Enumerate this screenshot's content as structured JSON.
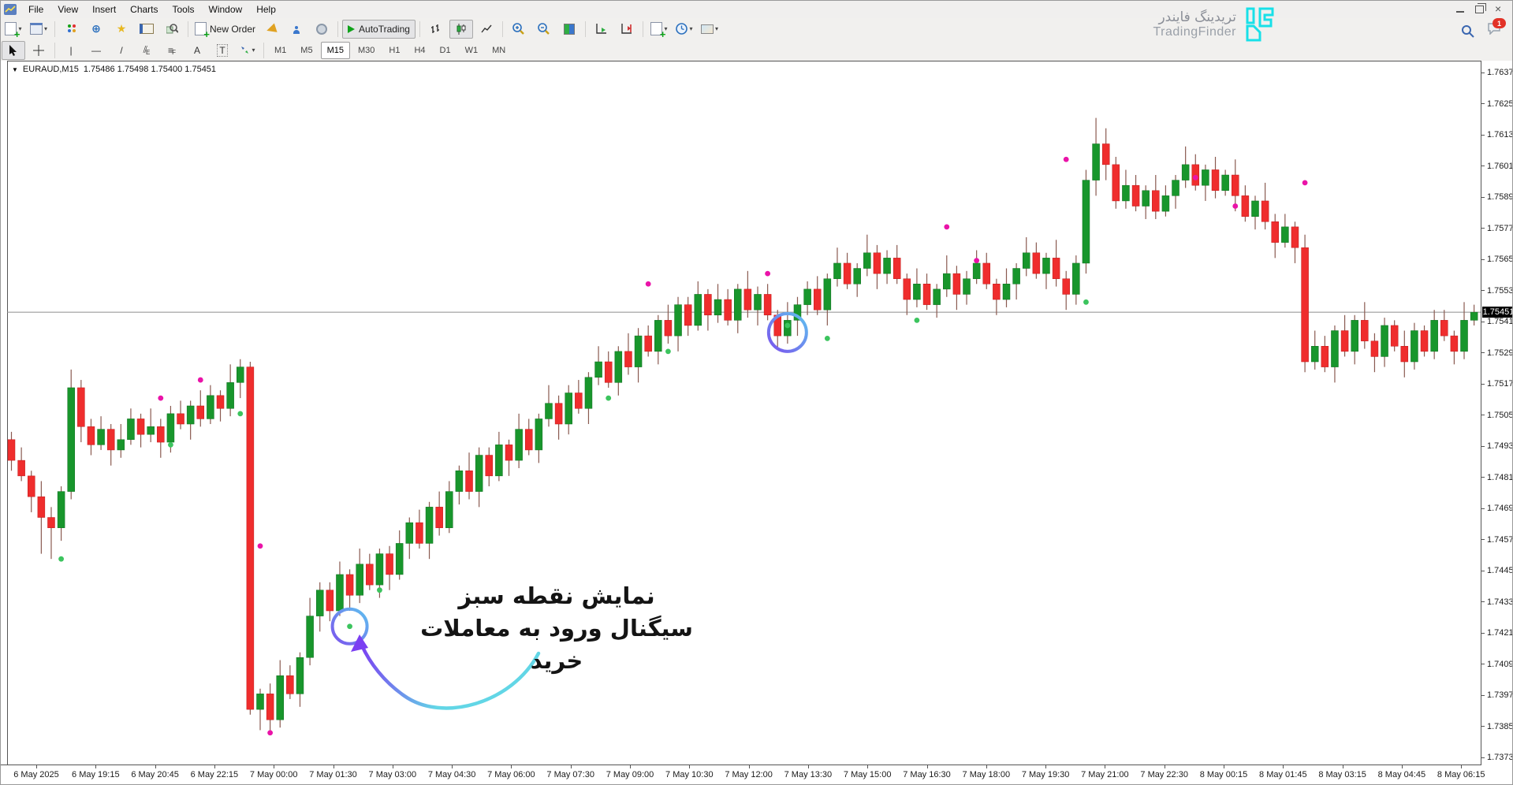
{
  "window": {
    "menu": [
      "File",
      "View",
      "Insert",
      "Charts",
      "Tools",
      "Window",
      "Help"
    ]
  },
  "brand": {
    "name_fa": "تریدینگ فایندر",
    "name_en": "TradingFinder"
  },
  "toolbar": {
    "new_order": "New Order",
    "autotrading": "AutoTrading",
    "chat_badge": "1",
    "tool_a": "A",
    "tool_t": "T",
    "tool_e": "E",
    "tool_f": "F"
  },
  "timeframes": {
    "items": [
      "M1",
      "M5",
      "M15",
      "M30",
      "H1",
      "H4",
      "D1",
      "W1",
      "MN"
    ],
    "active": "M15"
  },
  "chart_header": {
    "symbol": "EURAUD,M15",
    "ohlc": "1.75486 1.75498 1.75400 1.75451"
  },
  "annotation": {
    "line1": "نمایش نقطه سبز",
    "line2": "سیگنال ورود به معاملات خرید"
  },
  "chart_data": {
    "type": "candlestick",
    "symbol": "EURAUD",
    "timeframe": "M15",
    "current_price": 1.75451,
    "grid": false,
    "y_axis": {
      "tick_step": 0.0012,
      "ticks": [
        1.76375,
        1.76255,
        1.76135,
        1.76015,
        1.75895,
        1.75775,
        1.75655,
        1.75535,
        1.75415,
        1.75295,
        1.75175,
        1.75055,
        1.74935,
        1.74815,
        1.74695,
        1.74575,
        1.74455,
        1.74335,
        1.74215,
        1.74095,
        1.73975,
        1.73855,
        1.73735
      ]
    },
    "x_axis": {
      "labels": [
        "6 May 2025",
        "6 May 19:15",
        "6 May 20:45",
        "6 May 22:15",
        "7 May 00:00",
        "7 May 01:30",
        "7 May 03:00",
        "7 May 04:30",
        "7 May 06:00",
        "7 May 07:30",
        "7 May 09:00",
        "7 May 10:30",
        "7 May 12:00",
        "7 May 13:30",
        "7 May 15:00",
        "7 May 16:30",
        "7 May 18:00",
        "7 May 19:30",
        "7 May 21:00",
        "7 May 22:30",
        "8 May 00:15",
        "8 May 01:45",
        "8 May 03:15",
        "8 May 04:45",
        "8 May 06:15"
      ]
    },
    "candles": [
      [
        1.7496,
        1.7499,
        1.7484,
        1.7488
      ],
      [
        1.7488,
        1.7493,
        1.748,
        1.7482
      ],
      [
        1.7482,
        1.7484,
        1.7468,
        1.7474
      ],
      [
        1.7474,
        1.748,
        1.7452,
        1.7466
      ],
      [
        1.7466,
        1.747,
        1.745,
        1.7462
      ],
      [
        1.7462,
        1.7478,
        1.7457,
        1.7476
      ],
      [
        1.7476,
        1.7523,
        1.7473,
        1.7516
      ],
      [
        1.7516,
        1.7519,
        1.7495,
        1.7501
      ],
      [
        1.7501,
        1.7504,
        1.749,
        1.7494
      ],
      [
        1.7494,
        1.7505,
        1.7492,
        1.75
      ],
      [
        1.75,
        1.7502,
        1.7486,
        1.7492
      ],
      [
        1.7492,
        1.7502,
        1.7489,
        1.7496
      ],
      [
        1.7496,
        1.7508,
        1.7494,
        1.7504
      ],
      [
        1.7504,
        1.7506,
        1.7493,
        1.7498
      ],
      [
        1.7498,
        1.7508,
        1.7495,
        1.7501
      ],
      [
        1.7501,
        1.7504,
        1.7489,
        1.7495
      ],
      [
        1.7495,
        1.7509,
        1.7491,
        1.7506
      ],
      [
        1.7506,
        1.7511,
        1.75,
        1.7502
      ],
      [
        1.7502,
        1.7511,
        1.7496,
        1.7509
      ],
      [
        1.7509,
        1.7515,
        1.7501,
        1.7504
      ],
      [
        1.7504,
        1.7517,
        1.7502,
        1.7513
      ],
      [
        1.7513,
        1.7515,
        1.7503,
        1.7508
      ],
      [
        1.7508,
        1.7525,
        1.7505,
        1.7518
      ],
      [
        1.7518,
        1.7527,
        1.7512,
        1.7524
      ],
      [
        1.7524,
        1.7526,
        1.739,
        1.7392
      ],
      [
        1.7392,
        1.74,
        1.7384,
        1.7398
      ],
      [
        1.7398,
        1.7402,
        1.7384,
        1.7388
      ],
      [
        1.7388,
        1.7411,
        1.7385,
        1.7405
      ],
      [
        1.7405,
        1.7409,
        1.7396,
        1.7398
      ],
      [
        1.7398,
        1.7414,
        1.7393,
        1.7412
      ],
      [
        1.7412,
        1.7435,
        1.7409,
        1.7428
      ],
      [
        1.7428,
        1.7441,
        1.7422,
        1.7438
      ],
      [
        1.7438,
        1.7441,
        1.7426,
        1.743
      ],
      [
        1.743,
        1.7449,
        1.7428,
        1.7444
      ],
      [
        1.7444,
        1.7446,
        1.743,
        1.7436
      ],
      [
        1.7436,
        1.7454,
        1.7433,
        1.7448
      ],
      [
        1.7448,
        1.7452,
        1.7438,
        1.744
      ],
      [
        1.744,
        1.7454,
        1.7435,
        1.7452
      ],
      [
        1.7452,
        1.7455,
        1.7438,
        1.7444
      ],
      [
        1.7444,
        1.7461,
        1.7442,
        1.7456
      ],
      [
        1.7456,
        1.7466,
        1.745,
        1.7464
      ],
      [
        1.7464,
        1.7469,
        1.7454,
        1.7456
      ],
      [
        1.7456,
        1.7472,
        1.745,
        1.747
      ],
      [
        1.747,
        1.7476,
        1.7459,
        1.7462
      ],
      [
        1.7462,
        1.748,
        1.746,
        1.7476
      ],
      [
        1.7476,
        1.7486,
        1.7471,
        1.7484
      ],
      [
        1.7484,
        1.7491,
        1.7473,
        1.7476
      ],
      [
        1.7476,
        1.7493,
        1.747,
        1.749
      ],
      [
        1.749,
        1.7493,
        1.7478,
        1.7482
      ],
      [
        1.7482,
        1.7499,
        1.748,
        1.7494
      ],
      [
        1.7494,
        1.7496,
        1.7482,
        1.7488
      ],
      [
        1.7488,
        1.7506,
        1.7485,
        1.75
      ],
      [
        1.75,
        1.7504,
        1.749,
        1.7492
      ],
      [
        1.7492,
        1.7506,
        1.7487,
        1.7504
      ],
      [
        1.7504,
        1.7517,
        1.7501,
        1.751
      ],
      [
        1.751,
        1.7513,
        1.7496,
        1.7502
      ],
      [
        1.7502,
        1.7517,
        1.7498,
        1.7514
      ],
      [
        1.7514,
        1.7519,
        1.7506,
        1.7508
      ],
      [
        1.7508,
        1.7522,
        1.7502,
        1.752
      ],
      [
        1.752,
        1.7532,
        1.7517,
        1.7526
      ],
      [
        1.7526,
        1.753,
        1.7516,
        1.7518
      ],
      [
        1.7518,
        1.7532,
        1.7513,
        1.753
      ],
      [
        1.753,
        1.7537,
        1.7521,
        1.7524
      ],
      [
        1.7524,
        1.7539,
        1.7518,
        1.7536
      ],
      [
        1.7536,
        1.754,
        1.7528,
        1.753
      ],
      [
        1.753,
        1.7544,
        1.7525,
        1.7542
      ],
      [
        1.7542,
        1.7548,
        1.7533,
        1.7536
      ],
      [
        1.7536,
        1.7551,
        1.753,
        1.7548
      ],
      [
        1.7548,
        1.7551,
        1.7536,
        1.754
      ],
      [
        1.754,
        1.7557,
        1.7538,
        1.7552
      ],
      [
        1.7552,
        1.7554,
        1.7538,
        1.7544
      ],
      [
        1.7544,
        1.7556,
        1.7541,
        1.755
      ],
      [
        1.755,
        1.7554,
        1.754,
        1.7542
      ],
      [
        1.7542,
        1.7556,
        1.7537,
        1.7554
      ],
      [
        1.7554,
        1.7561,
        1.7543,
        1.7546
      ],
      [
        1.7546,
        1.7555,
        1.754,
        1.7552
      ],
      [
        1.7552,
        1.7556,
        1.7542,
        1.7544
      ],
      [
        1.7544,
        1.7546,
        1.7531,
        1.7536
      ],
      [
        1.7536,
        1.7549,
        1.7533,
        1.7542
      ],
      [
        1.7542,
        1.7551,
        1.7536,
        1.7548
      ],
      [
        1.7548,
        1.7557,
        1.7544,
        1.7554
      ],
      [
        1.7554,
        1.7559,
        1.7544,
        1.7546
      ],
      [
        1.7546,
        1.756,
        1.754,
        1.7558
      ],
      [
        1.7558,
        1.757,
        1.7555,
        1.7564
      ],
      [
        1.7564,
        1.7568,
        1.7554,
        1.7556
      ],
      [
        1.7556,
        1.7564,
        1.7551,
        1.7562
      ],
      [
        1.7562,
        1.7575,
        1.7559,
        1.7568
      ],
      [
        1.7568,
        1.7571,
        1.7554,
        1.756
      ],
      [
        1.756,
        1.7569,
        1.7556,
        1.7566
      ],
      [
        1.7566,
        1.7571,
        1.7556,
        1.7558
      ],
      [
        1.7558,
        1.756,
        1.7544,
        1.755
      ],
      [
        1.755,
        1.7562,
        1.7547,
        1.7556
      ],
      [
        1.7556,
        1.756,
        1.7546,
        1.7548
      ],
      [
        1.7548,
        1.7556,
        1.7543,
        1.7554
      ],
      [
        1.7554,
        1.7567,
        1.7551,
        1.756
      ],
      [
        1.756,
        1.7563,
        1.7546,
        1.7552
      ],
      [
        1.7552,
        1.7561,
        1.7548,
        1.7558
      ],
      [
        1.7558,
        1.7569,
        1.7556,
        1.7564
      ],
      [
        1.7564,
        1.7568,
        1.7554,
        1.7556
      ],
      [
        1.7556,
        1.7558,
        1.7544,
        1.755
      ],
      [
        1.755,
        1.7562,
        1.7547,
        1.7556
      ],
      [
        1.7556,
        1.7564,
        1.755,
        1.7562
      ],
      [
        1.7562,
        1.7574,
        1.7559,
        1.7568
      ],
      [
        1.7568,
        1.7572,
        1.7558,
        1.756
      ],
      [
        1.756,
        1.7568,
        1.7554,
        1.7566
      ],
      [
        1.7566,
        1.7573,
        1.7555,
        1.7558
      ],
      [
        1.7558,
        1.7561,
        1.7546,
        1.7552
      ],
      [
        1.7552,
        1.7567,
        1.7548,
        1.7564
      ],
      [
        1.7564,
        1.76,
        1.756,
        1.7596
      ],
      [
        1.7596,
        1.762,
        1.759,
        1.761
      ],
      [
        1.761,
        1.7616,
        1.7596,
        1.7602
      ],
      [
        1.7602,
        1.7605,
        1.7585,
        1.7588
      ],
      [
        1.7588,
        1.76,
        1.7585,
        1.7594
      ],
      [
        1.7594,
        1.7598,
        1.7584,
        1.7586
      ],
      [
        1.7586,
        1.7594,
        1.7581,
        1.7592
      ],
      [
        1.7592,
        1.7598,
        1.7581,
        1.7584
      ],
      [
        1.7584,
        1.7594,
        1.7582,
        1.759
      ],
      [
        1.759,
        1.7598,
        1.7585,
        1.7596
      ],
      [
        1.7596,
        1.7609,
        1.7593,
        1.7602
      ],
      [
        1.7602,
        1.7606,
        1.7592,
        1.7594
      ],
      [
        1.7594,
        1.7602,
        1.7588,
        1.76
      ],
      [
        1.76,
        1.7605,
        1.7589,
        1.7592
      ],
      [
        1.7592,
        1.76,
        1.759,
        1.7598
      ],
      [
        1.7598,
        1.7604,
        1.7584,
        1.759
      ],
      [
        1.759,
        1.7594,
        1.758,
        1.7582
      ],
      [
        1.7582,
        1.759,
        1.7577,
        1.7588
      ],
      [
        1.7588,
        1.7595,
        1.7577,
        1.758
      ],
      [
        1.758,
        1.7583,
        1.7566,
        1.7572
      ],
      [
        1.7572,
        1.7583,
        1.757,
        1.7578
      ],
      [
        1.7578,
        1.758,
        1.7564,
        1.757
      ],
      [
        1.757,
        1.7575,
        1.7522,
        1.7526
      ],
      [
        1.7526,
        1.7538,
        1.7523,
        1.7532
      ],
      [
        1.7532,
        1.7536,
        1.7522,
        1.7524
      ],
      [
        1.7524,
        1.754,
        1.7518,
        1.7538
      ],
      [
        1.7538,
        1.7544,
        1.7528,
        1.753
      ],
      [
        1.753,
        1.7544,
        1.7525,
        1.7542
      ],
      [
        1.7542,
        1.7549,
        1.7531,
        1.7534
      ],
      [
        1.7534,
        1.7537,
        1.7522,
        1.7528
      ],
      [
        1.7528,
        1.7543,
        1.7524,
        1.754
      ],
      [
        1.754,
        1.7542,
        1.753,
        1.7532
      ],
      [
        1.7532,
        1.7538,
        1.752,
        1.7526
      ],
      [
        1.7526,
        1.7541,
        1.7523,
        1.7538
      ],
      [
        1.7538,
        1.754,
        1.7528,
        1.753
      ],
      [
        1.753,
        1.7546,
        1.7527,
        1.7542
      ],
      [
        1.7542,
        1.7546,
        1.7534,
        1.7536
      ],
      [
        1.7536,
        1.7538,
        1.7525,
        1.753
      ],
      [
        1.753,
        1.7549,
        1.7527,
        1.7542
      ],
      [
        1.7542,
        1.7548,
        1.754,
        1.75451
      ]
    ],
    "buy_dots": [
      [
        5,
        1.745
      ],
      [
        16,
        1.7494
      ],
      [
        23,
        1.7506
      ],
      [
        34,
        1.7424
      ],
      [
        37,
        1.7438
      ],
      [
        60,
        1.7512
      ],
      [
        66,
        1.753
      ],
      [
        78,
        1.754
      ],
      [
        82,
        1.7535
      ],
      [
        91,
        1.7542
      ],
      [
        108,
        1.7549
      ]
    ],
    "sell_dots": [
      [
        15,
        1.7512
      ],
      [
        19,
        1.7519
      ],
      [
        25,
        1.7455
      ],
      [
        26,
        1.7383
      ],
      [
        64,
        1.7556
      ],
      [
        76,
        1.756
      ],
      [
        94,
        1.7578
      ],
      [
        97,
        1.7565
      ],
      [
        106,
        1.7604
      ],
      [
        119,
        1.7597
      ],
      [
        123,
        1.7586
      ],
      [
        130,
        1.7595
      ]
    ],
    "highlight_circles": [
      {
        "index": 34,
        "price": 1.7424,
        "r": 22
      },
      {
        "index": 78,
        "price": 1.75373,
        "r": 24
      }
    ],
    "colors": {
      "up": "#18962c",
      "down": "#ef2d2d",
      "wick": "#8a5a50",
      "buy_dot": "#3cc45e",
      "sell_dot": "#ea13a8",
      "price_line": "#8c8c8c",
      "circle_start": "#7b52ee",
      "circle_end": "#5ec1ef",
      "arrow_start": "#62d6e6",
      "arrow_end": "#7b3ff2"
    }
  }
}
